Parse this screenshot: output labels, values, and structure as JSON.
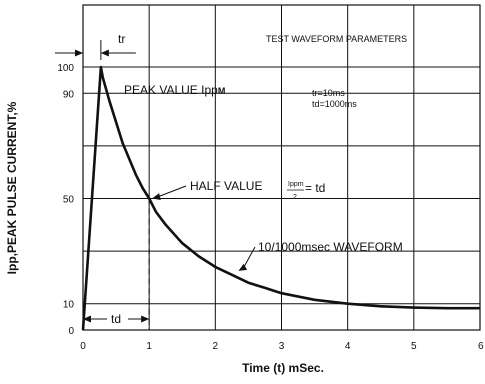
{
  "chart_data": {
    "type": "line",
    "title": "TEST WAVEFORM PARAMETERS",
    "xlabel": "Time (t) mSec.",
    "ylabel": "Ipp,PEAK PULSE CURRENT,%",
    "xlim": [
      0,
      6
    ],
    "ylim": [
      0,
      100
    ],
    "x_ticks": [
      "0",
      "1",
      "2",
      "3",
      "4",
      "5",
      "6"
    ],
    "y_ticks": [
      {
        "value": 0,
        "label": "0"
      },
      {
        "value": 10,
        "label": "10"
      },
      {
        "value": 50,
        "label": "50"
      },
      {
        "value": 90,
        "label": "90"
      },
      {
        "value": 100,
        "label": "100"
      }
    ],
    "y_gridlines": [
      10,
      30,
      50,
      70,
      90,
      100
    ],
    "grid": true,
    "series": [
      {
        "name": "10/1000msec WAVEFORM",
        "x": [
          0,
          0.27,
          0.3,
          0.4,
          0.5,
          0.6,
          0.7,
          0.8,
          0.9,
          1.0,
          1.1,
          1.25,
          1.5,
          1.75,
          2.0,
          2.25,
          2.5,
          2.75,
          3.0,
          3.5,
          4.0,
          4.5,
          5.0,
          5.5,
          6.0
        ],
        "y": [
          0,
          100,
          96,
          87,
          79,
          71,
          65,
          59,
          54,
          50,
          45,
          40,
          33,
          28,
          24,
          21,
          18,
          16,
          14,
          11.5,
          10,
          9,
          8.5,
          8.3,
          8.3
        ]
      }
    ],
    "annotations": {
      "peak_label": "PEAK VALUE Ipp",
      "peak_subscript": "M",
      "half_label": "HALF VALUE",
      "half_fraction_num": "Ippm",
      "half_fraction_den": "2",
      "half_tail": "= td",
      "waveform_label": "10/1000msec WAVEFORM",
      "params_tr": "tr=10ms",
      "params_td": "td=1000ms",
      "tr_label": "tr",
      "td_label": "td"
    }
  }
}
